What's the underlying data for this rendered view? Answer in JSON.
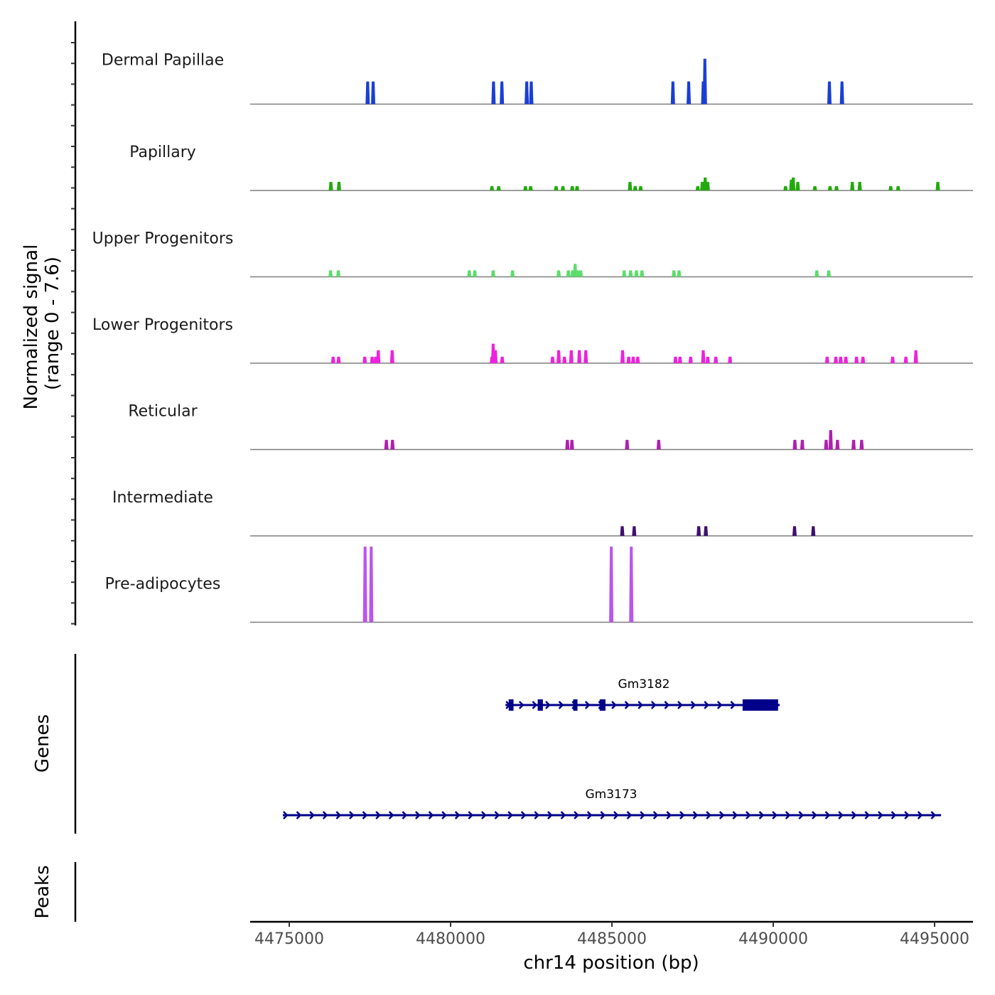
{
  "chart_data": {
    "type": "area",
    "title": "",
    "xlabel": "chr14 position (bp)",
    "ylabel": "Normalized signal\n(range 0 - 7.6)",
    "ylabel_lines": [
      "Normalized signal",
      "(range 0 - 7.6)"
    ],
    "ylim": [
      0,
      7.6
    ],
    "xlim": [
      4474600,
      4496100
    ],
    "x_ticks": [
      4475000,
      4480000,
      4485000,
      4490000,
      4495000
    ],
    "x_tick_labels": [
      "4475000",
      "4480000",
      "4485000",
      "4490000",
      "4495000"
    ],
    "grid": false,
    "series": [
      {
        "name": "Dermal Papillae",
        "color": "#1a3fd6",
        "peaks": [
          [
            4477430,
            2.1
          ],
          [
            4477600,
            2.1
          ],
          [
            4481330,
            2.1
          ],
          [
            4481590,
            2.1
          ],
          [
            4482360,
            2.1
          ],
          [
            4482500,
            2.1
          ],
          [
            4486890,
            2.1
          ],
          [
            4487380,
            2.1
          ],
          [
            4487830,
            2.1
          ],
          [
            4487880,
            4.2
          ],
          [
            4491740,
            2.1
          ],
          [
            4492130,
            2.1
          ]
        ]
      },
      {
        "name": "Papillary",
        "color": "#22aa0c",
        "peaks": [
          [
            4476290,
            0.8
          ],
          [
            4476540,
            0.8
          ],
          [
            4481280,
            0.4
          ],
          [
            4481490,
            0.4
          ],
          [
            4482320,
            0.4
          ],
          [
            4482480,
            0.4
          ],
          [
            4483270,
            0.4
          ],
          [
            4483480,
            0.4
          ],
          [
            4483770,
            0.4
          ],
          [
            4483920,
            0.4
          ],
          [
            4485560,
            0.8
          ],
          [
            4485720,
            0.4
          ],
          [
            4485890,
            0.4
          ],
          [
            4487660,
            0.4
          ],
          [
            4487800,
            0.8
          ],
          [
            4487890,
            1.2
          ],
          [
            4487970,
            0.8
          ],
          [
            4490380,
            0.4
          ],
          [
            4490560,
            1.0
          ],
          [
            4490620,
            1.2
          ],
          [
            4490760,
            0.8
          ],
          [
            4491290,
            0.4
          ],
          [
            4491760,
            0.4
          ],
          [
            4491960,
            0.4
          ],
          [
            4492450,
            0.8
          ],
          [
            4492680,
            0.8
          ],
          [
            4493640,
            0.4
          ],
          [
            4493870,
            0.4
          ],
          [
            4495100,
            0.8
          ]
        ]
      },
      {
        "name": "Upper Progenitors",
        "color": "#5ddd6b",
        "peaks": [
          [
            4476280,
            0.6
          ],
          [
            4476520,
            0.6
          ],
          [
            4480580,
            0.6
          ],
          [
            4480750,
            0.6
          ],
          [
            4481320,
            0.6
          ],
          [
            4481920,
            0.6
          ],
          [
            4483350,
            0.6
          ],
          [
            4483650,
            0.6
          ],
          [
            4483780,
            0.6
          ],
          [
            4483860,
            1.2
          ],
          [
            4483930,
            0.6
          ],
          [
            4484030,
            0.6
          ],
          [
            4485380,
            0.6
          ],
          [
            4485580,
            0.6
          ],
          [
            4485760,
            0.6
          ],
          [
            4485930,
            0.6
          ],
          [
            4486920,
            0.6
          ],
          [
            4487080,
            0.6
          ],
          [
            4491350,
            0.6
          ],
          [
            4491720,
            0.6
          ]
        ]
      },
      {
        "name": "Lower Progenitors",
        "color": "#ee22dd",
        "peaks": [
          [
            4476360,
            0.6
          ],
          [
            4476530,
            0.6
          ],
          [
            4477340,
            0.6
          ],
          [
            4477570,
            0.6
          ],
          [
            4477680,
            0.6
          ],
          [
            4477760,
            1.2
          ],
          [
            4478190,
            1.2
          ],
          [
            4481280,
            0.6
          ],
          [
            4481320,
            1.8
          ],
          [
            4481390,
            1.2
          ],
          [
            4481600,
            0.6
          ],
          [
            4483160,
            0.6
          ],
          [
            4483350,
            1.2
          ],
          [
            4483530,
            0.6
          ],
          [
            4483740,
            1.2
          ],
          [
            4483990,
            1.2
          ],
          [
            4484190,
            1.2
          ],
          [
            4485330,
            1.2
          ],
          [
            4485520,
            0.6
          ],
          [
            4485660,
            0.6
          ],
          [
            4485800,
            0.6
          ],
          [
            4486970,
            0.6
          ],
          [
            4487110,
            0.6
          ],
          [
            4487440,
            0.6
          ],
          [
            4487830,
            1.2
          ],
          [
            4487970,
            0.6
          ],
          [
            4488220,
            0.6
          ],
          [
            4488660,
            0.6
          ],
          [
            4491670,
            0.6
          ],
          [
            4491940,
            0.6
          ],
          [
            4492090,
            0.6
          ],
          [
            4492250,
            0.6
          ],
          [
            4492580,
            0.6
          ],
          [
            4492780,
            0.6
          ],
          [
            4493700,
            0.6
          ],
          [
            4494110,
            0.6
          ],
          [
            4494420,
            1.2
          ]
        ]
      },
      {
        "name": "Reticular",
        "color": "#b01fb0",
        "peaks": [
          [
            4478010,
            0.9
          ],
          [
            4478200,
            0.9
          ],
          [
            4483620,
            0.9
          ],
          [
            4483760,
            0.9
          ],
          [
            4485470,
            0.9
          ],
          [
            4486450,
            0.9
          ],
          [
            4490670,
            0.9
          ],
          [
            4490900,
            0.9
          ],
          [
            4491640,
            0.9
          ],
          [
            4491780,
            1.8
          ],
          [
            4491990,
            0.9
          ],
          [
            4492490,
            0.9
          ],
          [
            4492740,
            0.9
          ]
        ]
      },
      {
        "name": "Intermediate",
        "color": "#3f0f6e",
        "peaks": [
          [
            4485320,
            0.9
          ],
          [
            4485690,
            0.9
          ],
          [
            4487690,
            0.9
          ],
          [
            4487910,
            0.9
          ],
          [
            4490660,
            0.9
          ],
          [
            4491240,
            0.9
          ]
        ]
      },
      {
        "name": "Pre-adipocytes",
        "color": "#bb55ee",
        "peaks": [
          [
            4477350,
            7.0
          ],
          [
            4477540,
            7.0
          ],
          [
            4484980,
            7.0
          ],
          [
            4485600,
            7.0
          ]
        ]
      }
    ],
    "genes": [
      {
        "name": "Gm3182",
        "strand": "+",
        "start": 4481700,
        "end": 4490200,
        "exons": [
          [
            4481800,
            4481950
          ],
          [
            4482700,
            4482860
          ],
          [
            4483800,
            4483930
          ],
          [
            4484620,
            4484800
          ],
          [
            4489050,
            4490150
          ]
        ]
      },
      {
        "name": "Gm3173",
        "strand": "+",
        "start": 4474800,
        "end": 4495200,
        "exons": []
      }
    ],
    "panels": [
      "Normalized signal\n(range 0 - 7.6)",
      "Genes",
      "Peaks"
    ],
    "peaks_track": []
  },
  "panel_labels": {
    "signal_line1": "Normalized signal",
    "signal_line2": "(range 0 - 7.6)",
    "genes": "Genes",
    "peaks": "Peaks"
  },
  "colors": {
    "gene": "#00008b",
    "baseline": "#7f7f7f",
    "axis": "#000000"
  }
}
